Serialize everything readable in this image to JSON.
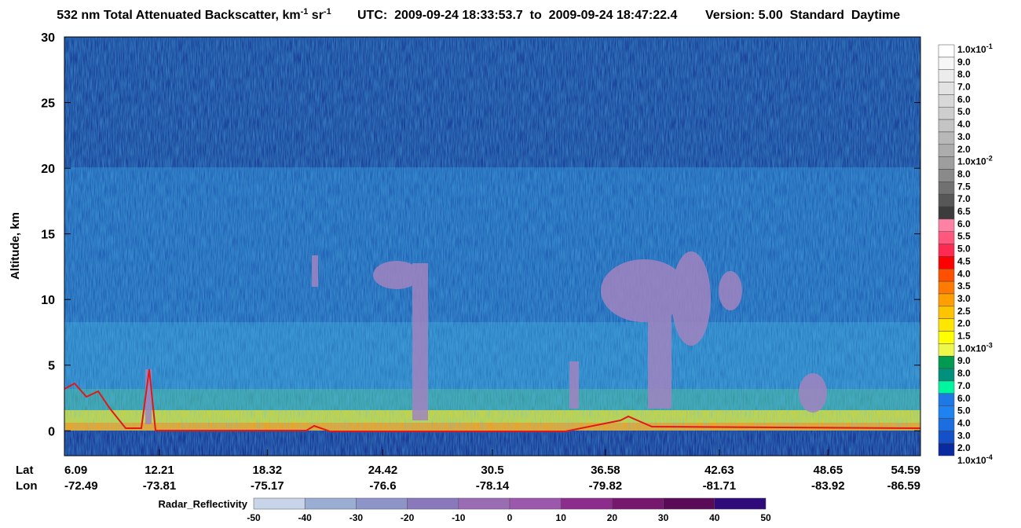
{
  "chart_data": {
    "type": "curtain",
    "title_parts": [
      "532 nm Total Attenuated Backscatter, km",
      "-1",
      " sr",
      "-1"
    ],
    "utc": "UTC:  2009-09-24 18:33:53.7  to  2009-09-24 18:47:22.4",
    "version": "Version: 5.00  Standard  Daytime",
    "y_label": "Altitude, km",
    "ylim": [
      -1.9,
      30
    ],
    "yticks": [
      0,
      5,
      10,
      15,
      20,
      25,
      30
    ],
    "lat_label": "Lat",
    "lon_label": "Lon",
    "lat": [
      6.09,
      12.21,
      18.32,
      24.42,
      30.5,
      36.58,
      42.63,
      48.65,
      54.59
    ],
    "lon": [
      -72.49,
      -73.81,
      -75.17,
      -76.6,
      -78.14,
      -79.82,
      -81.71,
      -83.92,
      -86.59
    ],
    "colorbar": {
      "labels": [
        {
          "label": "1.0x10",
          "sup": "-1"
        },
        {
          "label": "9.0"
        },
        {
          "label": "8.0"
        },
        {
          "label": "7.0"
        },
        {
          "label": "6.0"
        },
        {
          "label": "5.0"
        },
        {
          "label": "4.0"
        },
        {
          "label": "3.0"
        },
        {
          "label": "2.0"
        },
        {
          "label": "1.0x10",
          "sup": "-2"
        },
        {
          "label": "8.0"
        },
        {
          "label": "7.5"
        },
        {
          "label": "7.0"
        },
        {
          "label": "6.5"
        },
        {
          "label": "6.0"
        },
        {
          "label": "5.5"
        },
        {
          "label": "5.0"
        },
        {
          "label": "4.5"
        },
        {
          "label": "4.0"
        },
        {
          "label": "3.5"
        },
        {
          "label": "3.0"
        },
        {
          "label": "2.5"
        },
        {
          "label": "2.0"
        },
        {
          "label": "1.5"
        },
        {
          "label": "1.0x10",
          "sup": "-3"
        },
        {
          "label": "9.0"
        },
        {
          "label": "8.0"
        },
        {
          "label": "7.0"
        },
        {
          "label": "6.0"
        },
        {
          "label": "5.0"
        },
        {
          "label": "4.0"
        },
        {
          "label": "3.0"
        },
        {
          "label": "2.0"
        },
        {
          "label": "1.0x10",
          "sup": "-4"
        }
      ],
      "colors": [
        "#ffffff",
        "#f6f6f6",
        "#ececec",
        "#e2e2e2",
        "#d8d8d8",
        "#cecece",
        "#c4c4c4",
        "#b8b8b8",
        "#acacac",
        "#9e9e9e",
        "#8a8a8a",
        "#717171",
        "#575757",
        "#3c3c3c",
        "#ff82a5",
        "#ff587c",
        "#ff2a52",
        "#ff0000",
        "#ff5000",
        "#ff7a00",
        "#ffa000",
        "#ffc400",
        "#ffe600",
        "#ffff00",
        "#eef84a",
        "#009a50",
        "#00907c",
        "#00f5a0",
        "#1e78e6",
        "#1e82f0",
        "#1a6ee0",
        "#1450c8",
        "#0a2aa0"
      ]
    },
    "radar": {
      "label": "Radar_Reflectivity",
      "ticks": [
        -50,
        -40,
        -30,
        -20,
        -10,
        0,
        10,
        20,
        30,
        40,
        50
      ],
      "colors": [
        "#c8d4e8",
        "#9aaed4",
        "#8c94c8",
        "#8a78bc",
        "#9a6cb4",
        "#9c58ac",
        "#8c2c8c",
        "#76186e",
        "#5a0a56",
        "#2e0a7a"
      ]
    }
  }
}
